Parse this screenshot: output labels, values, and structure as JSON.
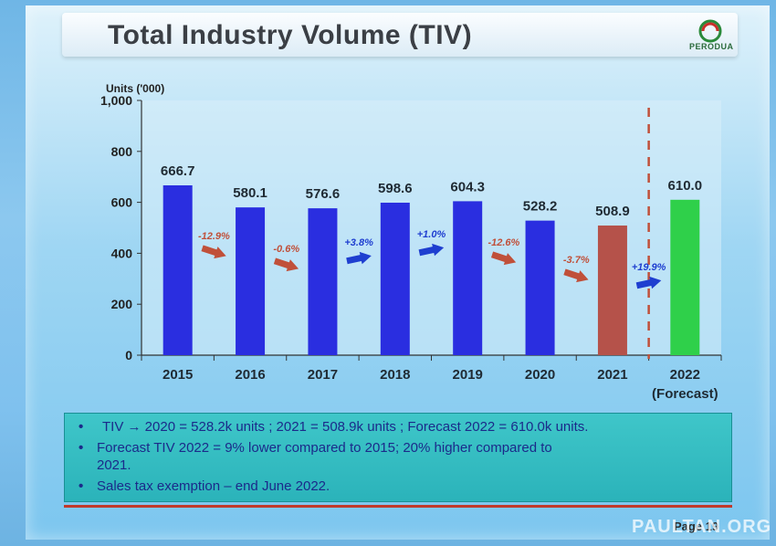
{
  "slide": {
    "title": "Total Industry Volume (TIV)",
    "logo_text": "PERODUA",
    "page_label": "Page 19",
    "watermark": "PAULTAN.ORG"
  },
  "chart_data": {
    "type": "bar",
    "title": "",
    "ylabel": "Units ('000)",
    "ylim": [
      0,
      1000
    ],
    "yticks": [
      "0",
      "200",
      "400",
      "600",
      "800",
      "1,000"
    ],
    "categories": [
      "2015",
      "2016",
      "2017",
      "2018",
      "2019",
      "2020",
      "2021",
      "2022"
    ],
    "category_sublabels": [
      "",
      "",
      "",
      "",
      "",
      "",
      "",
      "(Forecast)"
    ],
    "values": [
      666.7,
      580.1,
      576.6,
      598.6,
      604.3,
      528.2,
      508.9,
      610.0
    ],
    "value_labels": [
      "666.7",
      "580.1",
      "576.6",
      "598.6",
      "604.3",
      "528.2",
      "508.9",
      "610.0"
    ],
    "bar_colors": [
      "#2a2ee0",
      "#2a2ee0",
      "#2a2ee0",
      "#2a2ee0",
      "#2a2ee0",
      "#2a2ee0",
      "#b5524a",
      "#2fd04a"
    ],
    "changes": [
      {
        "label": "-12.9%",
        "direction": "down"
      },
      {
        "label": "-0.6%",
        "direction": "down"
      },
      {
        "label": "+3.8%",
        "direction": "up"
      },
      {
        "label": "+1.0%",
        "direction": "up"
      },
      {
        "label": "-12.6%",
        "direction": "down"
      },
      {
        "label": "-3.7%",
        "direction": "down"
      },
      {
        "label": "+19.9%",
        "direction": "up"
      }
    ],
    "change_colors": {
      "down": "#c0503a",
      "up": "#1f3fd0"
    },
    "forecast_divider": true,
    "grid": false
  },
  "bullets": [
    "TIV → 2020 = 528.2k units ; 2021 = 508.9k units ; Forecast 2022 = 610.0k units.",
    "Forecast TIV 2022 = 9% lower compared to 2015; 20% higher compared to",
    "2021.",
    "Sales tax exemption – end June 2022."
  ]
}
